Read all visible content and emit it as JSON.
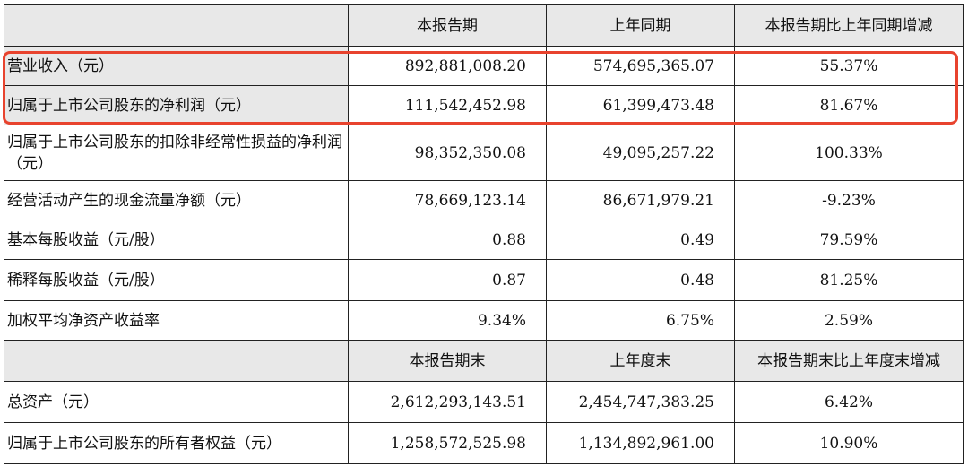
{
  "header1": {
    "col1": "本报告期",
    "col2": "上年同期",
    "col3": "本报告期比上年同期增减"
  },
  "rows1": [
    {
      "label": "营业收入（元）",
      "current": "892,881,008.20",
      "prior": "574,695,365.07",
      "change": "55.37%"
    },
    {
      "label": "归属于上市公司股东的净利润（元）",
      "current": "111,542,452.98",
      "prior": "61,399,473.48",
      "change": "81.67%"
    },
    {
      "label": "归属于上市公司股东的扣除非经常性损益的净利润（元）",
      "current": "98,352,350.08",
      "prior": "49,095,257.22",
      "change": "100.33%"
    },
    {
      "label": "经营活动产生的现金流量净额（元）",
      "current": "78,669,123.14",
      "prior": "86,671,979.21",
      "change": "-9.23%"
    },
    {
      "label": "基本每股收益（元/股）",
      "current": "0.88",
      "prior": "0.49",
      "change": "79.59%"
    },
    {
      "label": "稀释每股收益（元/股）",
      "current": "0.87",
      "prior": "0.48",
      "change": "81.25%"
    },
    {
      "label": "加权平均净资产收益率",
      "current": "9.34%",
      "prior": "6.75%",
      "change": "2.59%"
    }
  ],
  "header2": {
    "col1": "本报告期末",
    "col2": "上年度末",
    "col3": "本报告期末比上年度末增减"
  },
  "rows2": [
    {
      "label": "总资产（元）",
      "current": "2,612,293,143.51",
      "prior": "2,454,747,383.25",
      "change": "6.42%"
    },
    {
      "label": "归属于上市公司股东的所有者权益（元）",
      "current": "1,258,572,525.98",
      "prior": "1,134,892,961.00",
      "change": "10.90%"
    }
  ]
}
